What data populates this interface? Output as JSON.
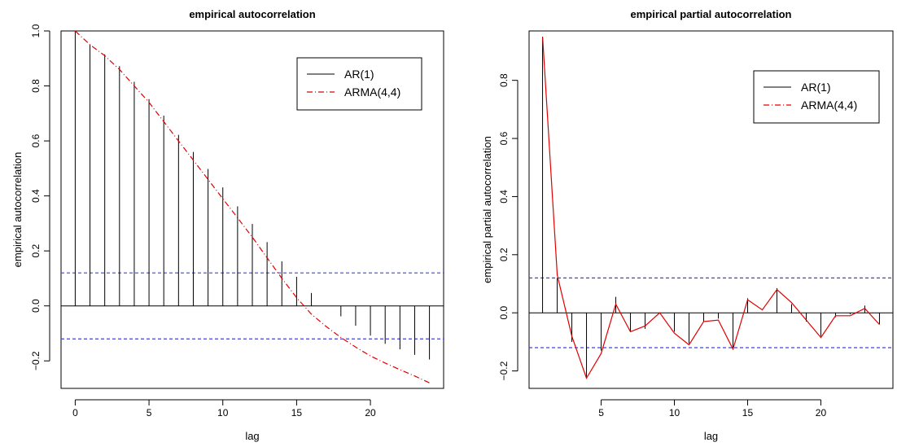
{
  "colors": {
    "background": "#ffffff",
    "axis": "#000000",
    "ar_spike": "#000000",
    "arma_line": "#e00000",
    "confidence_band": "#4040e0"
  },
  "chart_data": [
    {
      "type": "line",
      "title": "empirical autocorrelation",
      "xlabel": "lag",
      "ylabel": "empirical autocorrelation",
      "xlim": [
        -0.96,
        24.96
      ],
      "ylim": [
        -0.3,
        1.0
      ],
      "x_ticks": [
        0,
        5,
        10,
        15,
        20
      ],
      "y_ticks": [
        -0.2,
        0.0,
        0.2,
        0.4,
        0.6,
        0.8,
        1.0
      ],
      "y_tick_labels": [
        "−0.2",
        "0.0",
        "0.2",
        "0.4",
        "0.6",
        "0.8",
        "1.0"
      ],
      "zero_line": 0,
      "confidence_bounds": [
        0.12,
        -0.12
      ],
      "grid": false,
      "legend_position": "top-right",
      "legend": [
        "AR(1)",
        "ARMA(4,4)"
      ],
      "series": [
        {
          "name": "AR(1)",
          "style": "spikes",
          "x": [
            0,
            1,
            2,
            3,
            4,
            5,
            6,
            7,
            8,
            9,
            10,
            11,
            12,
            13,
            14,
            15,
            16,
            17,
            18,
            19,
            20,
            21,
            22,
            23,
            24
          ],
          "values": [
            1.0,
            0.95,
            0.915,
            0.872,
            0.815,
            0.752,
            0.692,
            0.622,
            0.56,
            0.498,
            0.431,
            0.362,
            0.298,
            0.232,
            0.162,
            0.106,
            0.047,
            0.0,
            -0.038,
            -0.072,
            -0.108,
            -0.138,
            -0.158,
            -0.178,
            -0.195
          ]
        },
        {
          "name": "ARMA(4,4)",
          "style": "dash-dot line",
          "x": [
            0,
            1,
            2,
            3,
            4,
            5,
            6,
            7,
            8,
            9,
            10,
            11,
            12,
            13,
            14,
            15,
            16,
            17,
            18,
            19,
            20,
            21,
            22,
            23,
            24
          ],
          "values": [
            1.0,
            0.95,
            0.91,
            0.86,
            0.8,
            0.74,
            0.67,
            0.6,
            0.53,
            0.46,
            0.39,
            0.32,
            0.25,
            0.175,
            0.1,
            0.03,
            -0.03,
            -0.075,
            -0.115,
            -0.15,
            -0.182,
            -0.208,
            -0.232,
            -0.255,
            -0.28
          ]
        }
      ]
    },
    {
      "type": "line",
      "title": "empirical partial autocorrelation",
      "xlabel": "lag",
      "ylabel": "empirical partial autocorrelation",
      "xlim": [
        0.08,
        24.92
      ],
      "ylim": [
        -0.26,
        0.97
      ],
      "x_ticks": [
        5,
        10,
        15,
        20
      ],
      "y_ticks": [
        -0.2,
        0.0,
        0.2,
        0.4,
        0.6,
        0.8
      ],
      "y_tick_labels": [
        "−0.2",
        "0.0",
        "0.2",
        "0.4",
        "0.6",
        "0.8"
      ],
      "zero_line": 0,
      "confidence_bounds": [
        0.12,
        -0.12
      ],
      "grid": false,
      "legend_position": "top-right",
      "legend": [
        "AR(1)",
        "ARMA(4,4)"
      ],
      "series": [
        {
          "name": "AR(1)",
          "style": "spikes",
          "x": [
            1,
            2,
            3,
            4,
            5,
            6,
            7,
            8,
            9,
            10,
            11,
            12,
            13,
            14,
            15,
            16,
            17,
            18,
            19,
            20,
            21,
            22,
            23,
            24
          ],
          "values": [
            0.95,
            0.12,
            -0.1,
            -0.22,
            -0.13,
            0.055,
            -0.065,
            -0.055,
            0.0,
            -0.065,
            -0.105,
            -0.03,
            -0.02,
            -0.12,
            0.05,
            0.0,
            0.085,
            0.03,
            -0.03,
            -0.08,
            -0.015,
            -0.005,
            0.025,
            -0.04
          ]
        },
        {
          "name": "ARMA(4,4)",
          "style": "solid line",
          "x": [
            1,
            2,
            3,
            4,
            5,
            6,
            7,
            8,
            9,
            10,
            11,
            12,
            13,
            14,
            15,
            16,
            17,
            18,
            19,
            20,
            21,
            22,
            23,
            24
          ],
          "values": [
            0.95,
            0.13,
            -0.08,
            -0.225,
            -0.14,
            0.03,
            -0.065,
            -0.045,
            0.0,
            -0.07,
            -0.11,
            -0.03,
            -0.025,
            -0.125,
            0.045,
            0.01,
            0.08,
            0.035,
            -0.025,
            -0.085,
            -0.01,
            -0.01,
            0.015,
            -0.04
          ]
        }
      ]
    }
  ]
}
